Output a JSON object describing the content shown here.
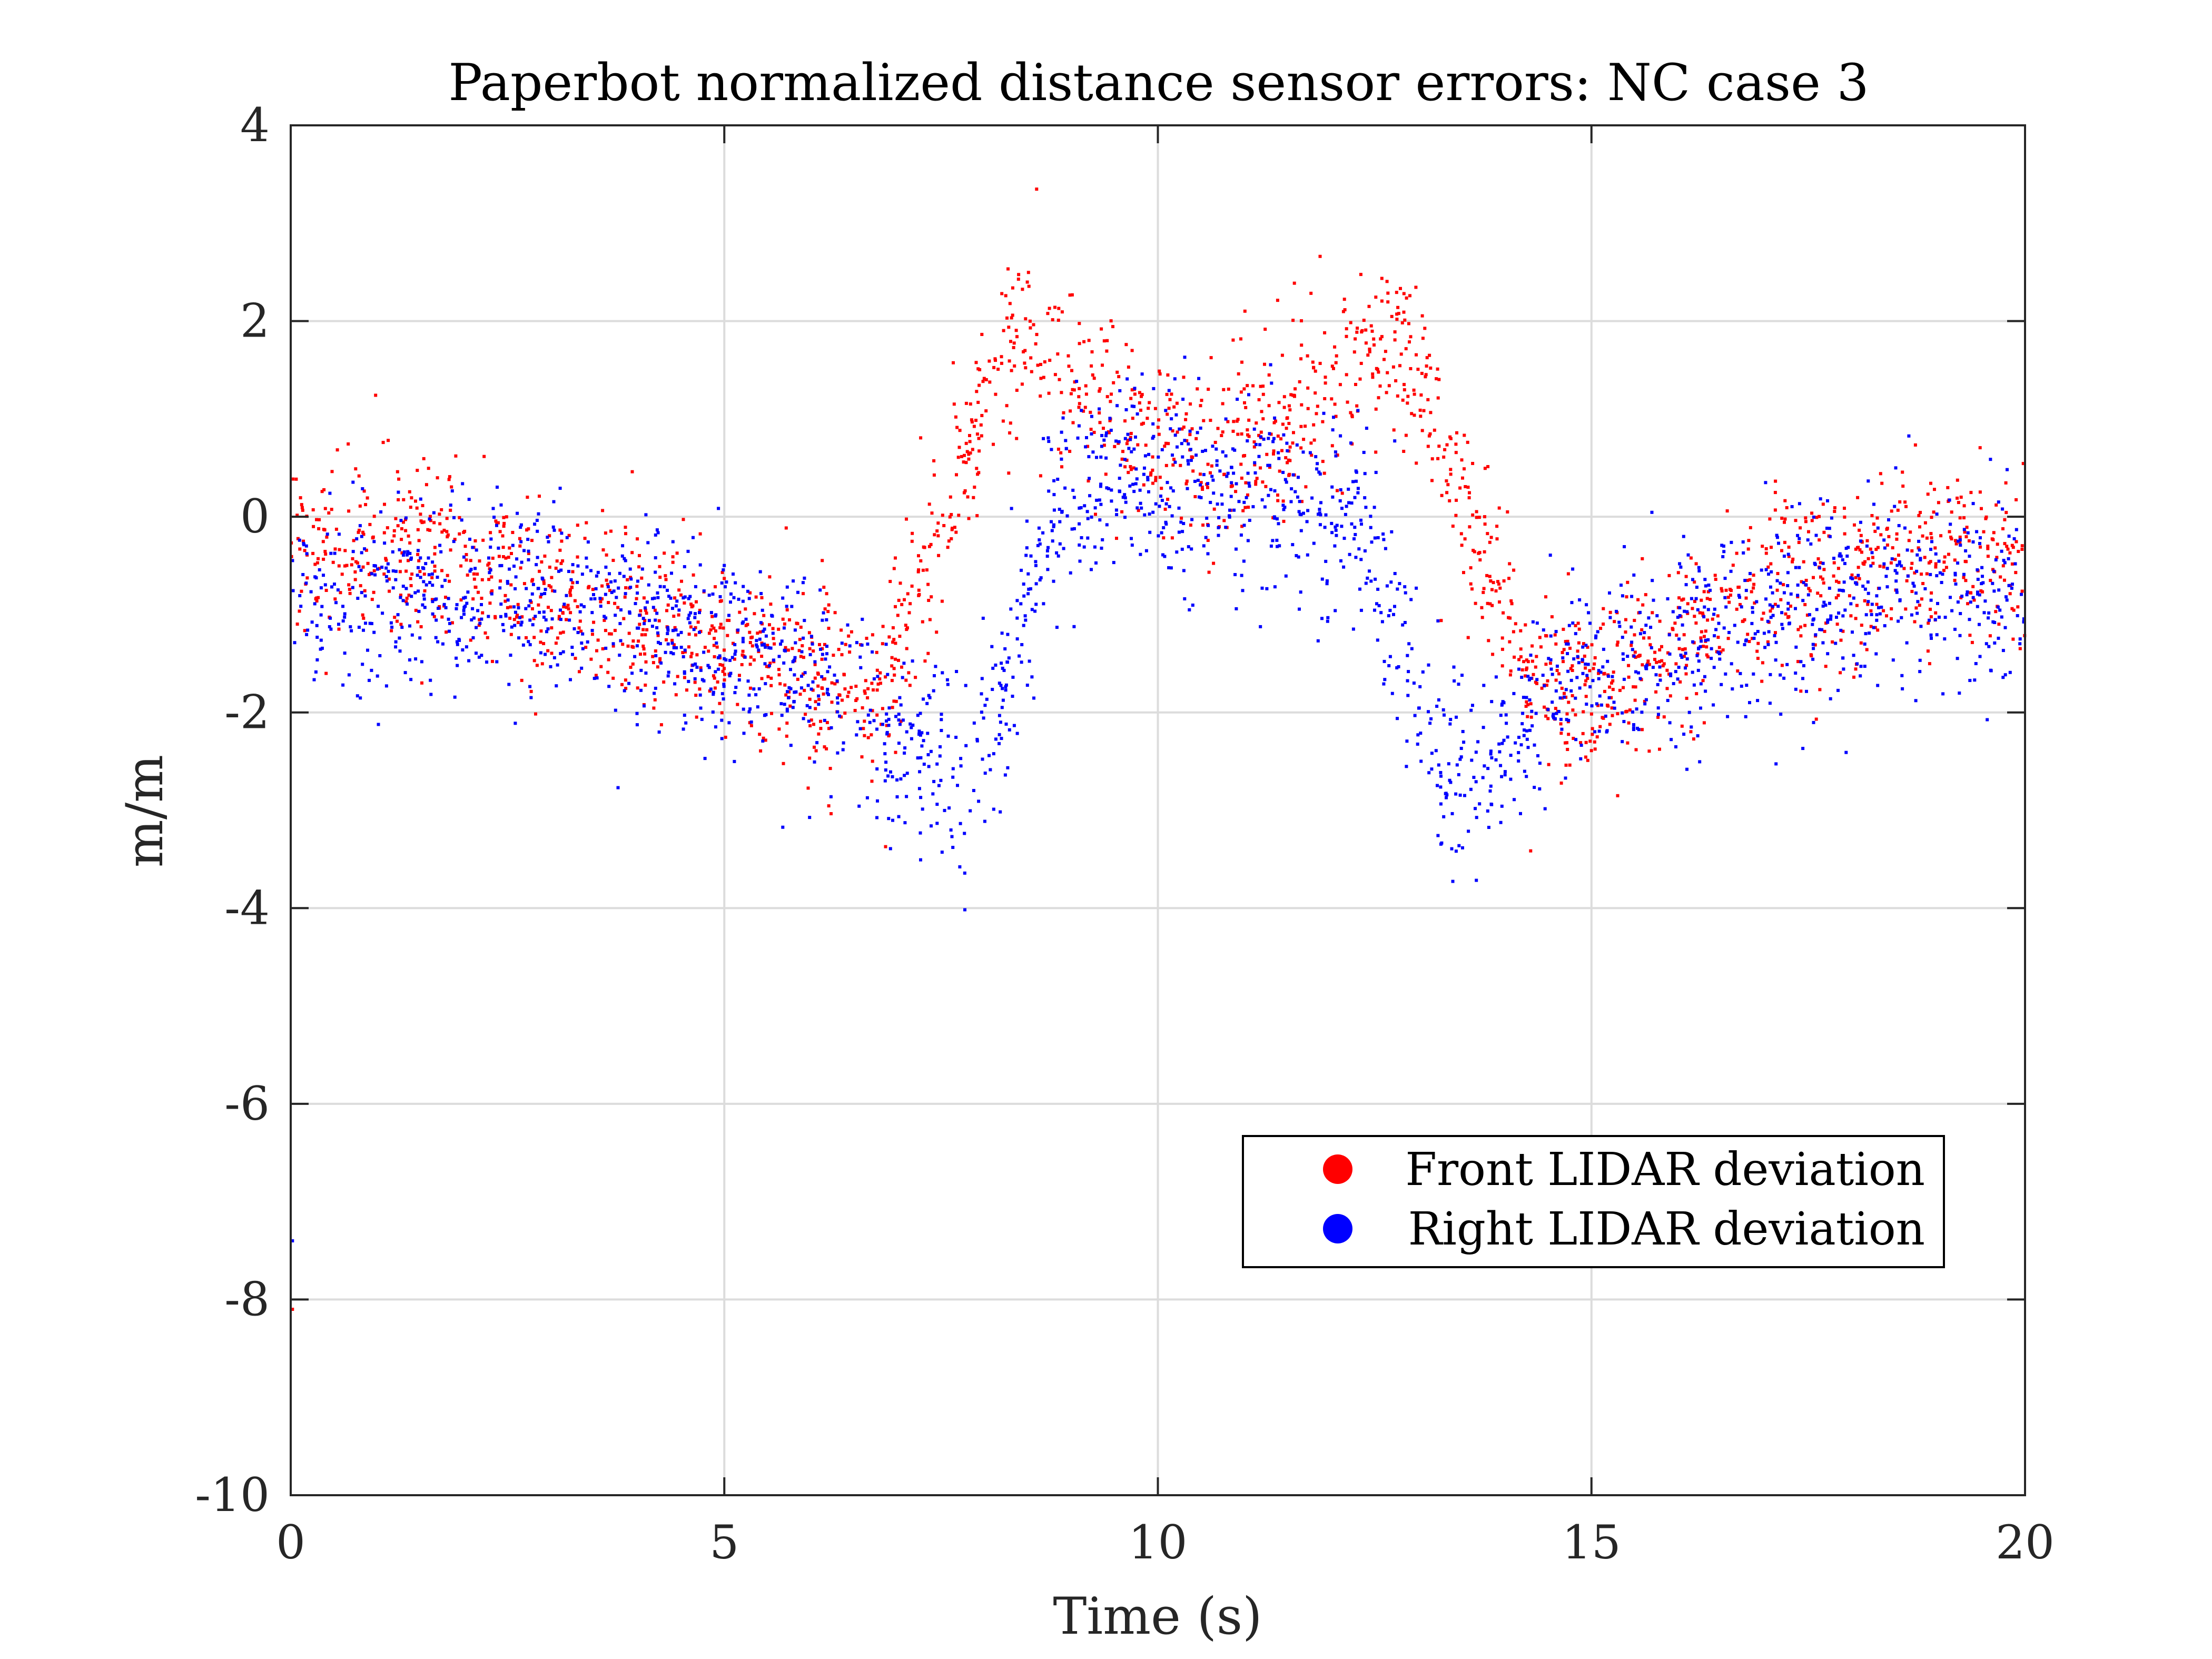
{
  "chart_data": {
    "type": "scatter",
    "title": "Paperbot normalized distance sensor errors: NC case 3",
    "xlabel": "Time (s)",
    "ylabel": "m/m",
    "xlim": [
      0,
      20
    ],
    "ylim": [
      -10,
      4
    ],
    "xticks": [
      0,
      5,
      10,
      15,
      20
    ],
    "yticks": [
      -10,
      -8,
      -6,
      -4,
      -2,
      0,
      2,
      4
    ],
    "xtick_labels": [
      "0",
      "5",
      "10",
      "15",
      "20"
    ],
    "ytick_labels": [
      "-10",
      "-8",
      "-6",
      "-4",
      "-2",
      "0",
      "2",
      "4"
    ],
    "grid": true,
    "legend_position": "lower-right",
    "points_per_series": 2200,
    "series": [
      {
        "name": "Front LIDAR deviation",
        "color": "#ff0000",
        "trend": [
          {
            "x": 0,
            "y": -0.4
          },
          {
            "x": 1,
            "y": -0.3
          },
          {
            "x": 2,
            "y": -0.5
          },
          {
            "x": 3,
            "y": -0.7
          },
          {
            "x": 4,
            "y": -1.0
          },
          {
            "x": 5,
            "y": -1.3
          },
          {
            "x": 6,
            "y": -1.6
          },
          {
            "x": 6.8,
            "y": -1.8
          },
          {
            "x": 7.2,
            "y": -0.7
          },
          {
            "x": 7.8,
            "y": 0.7
          },
          {
            "x": 8.3,
            "y": 1.9
          },
          {
            "x": 8.8,
            "y": 1.5
          },
          {
            "x": 9.5,
            "y": 1.0
          },
          {
            "x": 10.5,
            "y": 0.6
          },
          {
            "x": 11.5,
            "y": 1.0
          },
          {
            "x": 12.3,
            "y": 1.5
          },
          {
            "x": 12.7,
            "y": 1.9
          },
          {
            "x": 13.2,
            "y": 1.0
          },
          {
            "x": 13.7,
            "y": -0.3
          },
          {
            "x": 14.3,
            "y": -1.6
          },
          {
            "x": 15,
            "y": -1.8
          },
          {
            "x": 16,
            "y": -1.3
          },
          {
            "x": 17,
            "y": -0.8
          },
          {
            "x": 18,
            "y": -0.5
          },
          {
            "x": 19,
            "y": -0.3
          },
          {
            "x": 20,
            "y": -0.4
          }
        ],
        "spread": 0.45,
        "outliers": [
          {
            "x": 0.02,
            "y": -8.1
          }
        ]
      },
      {
        "name": "Right LIDAR deviation",
        "color": "#0000ff",
        "trend": [
          {
            "x": 0,
            "y": -0.9
          },
          {
            "x": 1,
            "y": -0.8
          },
          {
            "x": 2,
            "y": -0.8
          },
          {
            "x": 3,
            "y": -0.9
          },
          {
            "x": 4,
            "y": -1.1
          },
          {
            "x": 5,
            "y": -1.3
          },
          {
            "x": 6,
            "y": -1.7
          },
          {
            "x": 7,
            "y": -2.3
          },
          {
            "x": 7.8,
            "y": -2.7
          },
          {
            "x": 8.3,
            "y": -1.5
          },
          {
            "x": 8.8,
            "y": 0.0
          },
          {
            "x": 9.5,
            "y": 0.6
          },
          {
            "x": 10.5,
            "y": 0.1
          },
          {
            "x": 11.5,
            "y": 0.2
          },
          {
            "x": 12.3,
            "y": 0.0
          },
          {
            "x": 12.8,
            "y": -1.2
          },
          {
            "x": 13.3,
            "y": -2.7
          },
          {
            "x": 13.8,
            "y": -2.6
          },
          {
            "x": 14.5,
            "y": -1.8
          },
          {
            "x": 15.5,
            "y": -1.5
          },
          {
            "x": 16.5,
            "y": -1.2
          },
          {
            "x": 17.5,
            "y": -0.9
          },
          {
            "x": 18.5,
            "y": -0.8
          },
          {
            "x": 20,
            "y": -0.8
          }
        ],
        "spread": 0.5,
        "outliers": [
          {
            "x": 0.02,
            "y": -7.4
          }
        ]
      }
    ]
  }
}
